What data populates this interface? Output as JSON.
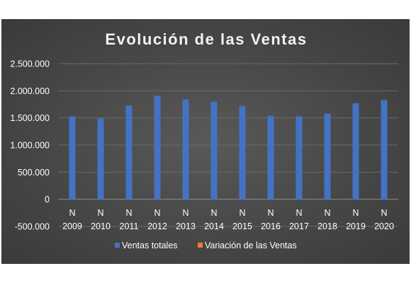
{
  "chart_data": {
    "type": "bar",
    "title": "Evolución de las Ventas",
    "categories": [
      {
        "line1": "N",
        "line2": "2009"
      },
      {
        "line1": "N",
        "line2": "2010"
      },
      {
        "line1": "N",
        "line2": "2011"
      },
      {
        "line1": "N",
        "line2": "2012"
      },
      {
        "line1": "N",
        "line2": "2013"
      },
      {
        "line1": "N",
        "line2": "2014"
      },
      {
        "line1": "N",
        "line2": "2015"
      },
      {
        "line1": "N",
        "line2": "2016"
      },
      {
        "line1": "N",
        "line2": "2017"
      },
      {
        "line1": "N",
        "line2": "2018"
      },
      {
        "line1": "N",
        "line2": "2019"
      },
      {
        "line1": "N",
        "line2": "2020"
      }
    ],
    "series": [
      {
        "name": "Ventas totales",
        "color": "#4472c4",
        "values": [
          1530000,
          1490000,
          1730000,
          1910000,
          1840000,
          1800000,
          1720000,
          1540000,
          1530000,
          1580000,
          1770000,
          1830000
        ]
      },
      {
        "name": "Variación de las Ventas",
        "color": "#ed7d31",
        "values": [
          0,
          0,
          0,
          0,
          0,
          0,
          0,
          0,
          0,
          0,
          0,
          0
        ]
      }
    ],
    "ylim": [
      -500000,
      2500000
    ],
    "yticks": [
      {
        "value": 2500000,
        "label": "2.500.000"
      },
      {
        "value": 2000000,
        "label": "2.000.000"
      },
      {
        "value": 1500000,
        "label": "1.500.000"
      },
      {
        "value": 1000000,
        "label": "1.000.000"
      },
      {
        "value": 500000,
        "label": "500.000"
      },
      {
        "value": 0,
        "label": "0"
      },
      {
        "value": -500000,
        "label": "-500.000"
      }
    ],
    "grid": true,
    "legend_position": "bottom"
  }
}
